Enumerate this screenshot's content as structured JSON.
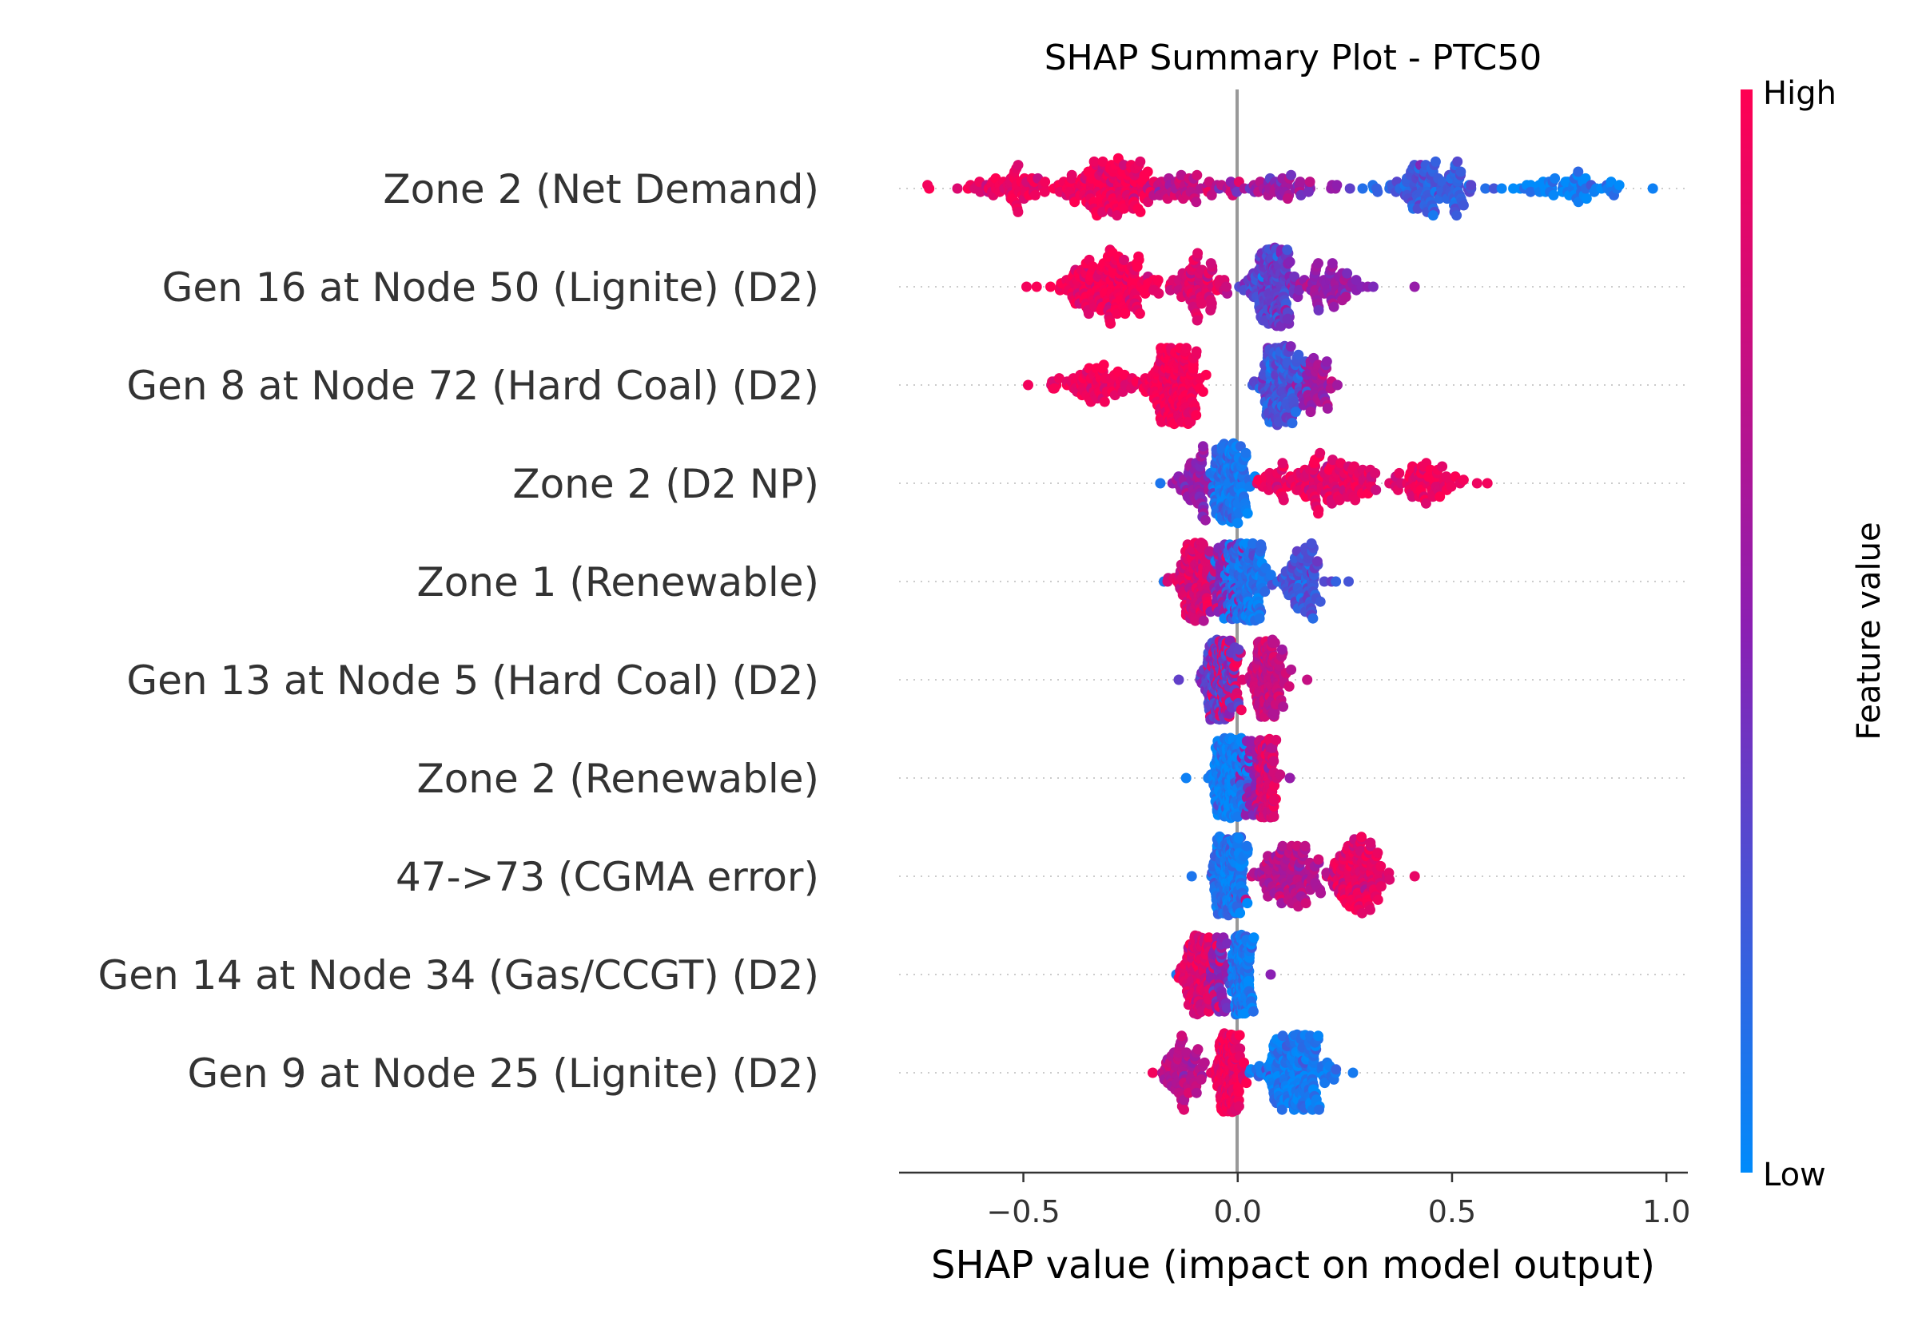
{
  "chart_data": {
    "type": "scatter",
    "subtype": "shap-beeswarm",
    "title": "SHAP Summary Plot - PTC50",
    "xlabel": "SHAP value (impact on model output)",
    "xlim": [
      -0.79,
      1.05
    ],
    "xticks": [
      {
        "value": -0.5,
        "label": "−0.5"
      },
      {
        "value": 0.0,
        "label": "0.0"
      },
      {
        "value": 0.5,
        "label": "0.5"
      },
      {
        "value": 1.0,
        "label": "1.0"
      }
    ],
    "colorbar": {
      "label": "Feature value",
      "high_label": "High",
      "low_label": "Low",
      "low_color": "#008bfb",
      "mid_color": "#8a1fb3",
      "high_color": "#ff0052"
    },
    "features": [
      {
        "name": "Zone 2 (Net Demand)",
        "range": [
          -0.72,
          0.97
        ],
        "clusters": [
          {
            "center": -0.3,
            "spread": 0.09,
            "weight": 0.28,
            "feature_value": 0.95
          },
          {
            "center": -0.52,
            "spread": 0.1,
            "weight": 0.14,
            "feature_value": 0.92
          },
          {
            "center": -0.12,
            "spread": 0.1,
            "weight": 0.12,
            "feature_value": 0.75
          },
          {
            "center": 0.1,
            "spread": 0.12,
            "weight": 0.1,
            "feature_value": 0.55
          },
          {
            "center": 0.45,
            "spread": 0.1,
            "weight": 0.24,
            "feature_value": 0.2
          },
          {
            "center": 0.78,
            "spread": 0.12,
            "weight": 0.12,
            "feature_value": 0.05
          }
        ]
      },
      {
        "name": "Gen 16 at Node 50 (Lignite) (D2)",
        "range": [
          -0.49,
          0.41
        ],
        "clusters": [
          {
            "center": -0.3,
            "spread": 0.1,
            "weight": 0.35,
            "feature_value": 0.95
          },
          {
            "center": -0.1,
            "spread": 0.06,
            "weight": 0.15,
            "feature_value": 0.85
          },
          {
            "center": 0.08,
            "spread": 0.04,
            "weight": 0.35,
            "feature_value": 0.35
          },
          {
            "center": 0.2,
            "spread": 0.08,
            "weight": 0.15,
            "feature_value": 0.55
          }
        ]
      },
      {
        "name": "Gen 8 at Node 72 (Hard Coal) (D2)",
        "range": [
          -0.49,
          0.23
        ],
        "clusters": [
          {
            "center": -0.15,
            "spread": 0.05,
            "weight": 0.4,
            "feature_value": 0.95
          },
          {
            "center": -0.33,
            "spread": 0.08,
            "weight": 0.15,
            "feature_value": 0.95
          },
          {
            "center": 0.1,
            "spread": 0.04,
            "weight": 0.35,
            "feature_value": 0.25
          },
          {
            "center": 0.18,
            "spread": 0.04,
            "weight": 0.1,
            "feature_value": 0.6
          }
        ]
      },
      {
        "name": "Zone 2 (D2 NP)",
        "range": [
          -0.18,
          0.58
        ],
        "clusters": [
          {
            "center": -0.02,
            "spread": 0.03,
            "weight": 0.45,
            "feature_value": 0.1
          },
          {
            "center": -0.1,
            "spread": 0.04,
            "weight": 0.12,
            "feature_value": 0.55
          },
          {
            "center": 0.2,
            "spread": 0.12,
            "weight": 0.3,
            "feature_value": 0.9
          },
          {
            "center": 0.45,
            "spread": 0.07,
            "weight": 0.13,
            "feature_value": 0.95
          }
        ]
      },
      {
        "name": "Zone 1 (Renewable)",
        "range": [
          -0.17,
          0.26
        ],
        "clusters": [
          {
            "center": 0.02,
            "spread": 0.04,
            "weight": 0.4,
            "feature_value": 0.1
          },
          {
            "center": -0.1,
            "spread": 0.04,
            "weight": 0.3,
            "feature_value": 0.85
          },
          {
            "center": -0.03,
            "spread": 0.03,
            "weight": 0.12,
            "feature_value": 0.5
          },
          {
            "center": 0.15,
            "spread": 0.05,
            "weight": 0.18,
            "feature_value": 0.25
          }
        ]
      },
      {
        "name": "Gen 13 at Node 5 (Hard Coal) (D2)",
        "range": [
          -0.14,
          0.16
        ],
        "clusters": [
          {
            "center": -0.04,
            "spread": 0.03,
            "weight": 0.45,
            "feature_value": 0.35
          },
          {
            "center": -0.03,
            "spread": 0.025,
            "weight": 0.2,
            "feature_value": 0.9
          },
          {
            "center": 0.07,
            "spread": 0.03,
            "weight": 0.35,
            "feature_value": 0.75
          }
        ]
      },
      {
        "name": "Zone 2 (Renewable)",
        "range": [
          -0.12,
          0.12
        ],
        "clusters": [
          {
            "center": -0.02,
            "spread": 0.03,
            "weight": 0.6,
            "feature_value": 0.05
          },
          {
            "center": 0.07,
            "spread": 0.02,
            "weight": 0.28,
            "feature_value": 0.85
          },
          {
            "center": 0.04,
            "spread": 0.02,
            "weight": 0.12,
            "feature_value": 0.55
          }
        ]
      },
      {
        "name": "47->73 (CGMA error)",
        "range": [
          -0.11,
          0.41
        ],
        "clusters": [
          {
            "center": -0.02,
            "spread": 0.03,
            "weight": 0.5,
            "feature_value": 0.1
          },
          {
            "center": 0.12,
            "spread": 0.07,
            "weight": 0.25,
            "feature_value": 0.7
          },
          {
            "center": 0.28,
            "spread": 0.05,
            "weight": 0.25,
            "feature_value": 0.9
          }
        ]
      },
      {
        "name": "Gen 14 at Node 34 (Gas/CCGT) (D2)",
        "range": [
          -0.14,
          0.08
        ],
        "clusters": [
          {
            "center": 0.01,
            "spread": 0.015,
            "weight": 0.6,
            "feature_value": 0.08
          },
          {
            "center": -0.09,
            "spread": 0.03,
            "weight": 0.3,
            "feature_value": 0.85
          },
          {
            "center": -0.04,
            "spread": 0.02,
            "weight": 0.1,
            "feature_value": 0.5
          }
        ]
      },
      {
        "name": "Gen 9 at Node 25 (Lignite) (D2)",
        "range": [
          -0.2,
          0.27
        ],
        "clusters": [
          {
            "center": -0.02,
            "spread": 0.025,
            "weight": 0.45,
            "feature_value": 0.95
          },
          {
            "center": -0.13,
            "spread": 0.04,
            "weight": 0.15,
            "feature_value": 0.7
          },
          {
            "center": 0.13,
            "spread": 0.07,
            "weight": 0.4,
            "feature_value": 0.08
          }
        ]
      }
    ]
  }
}
